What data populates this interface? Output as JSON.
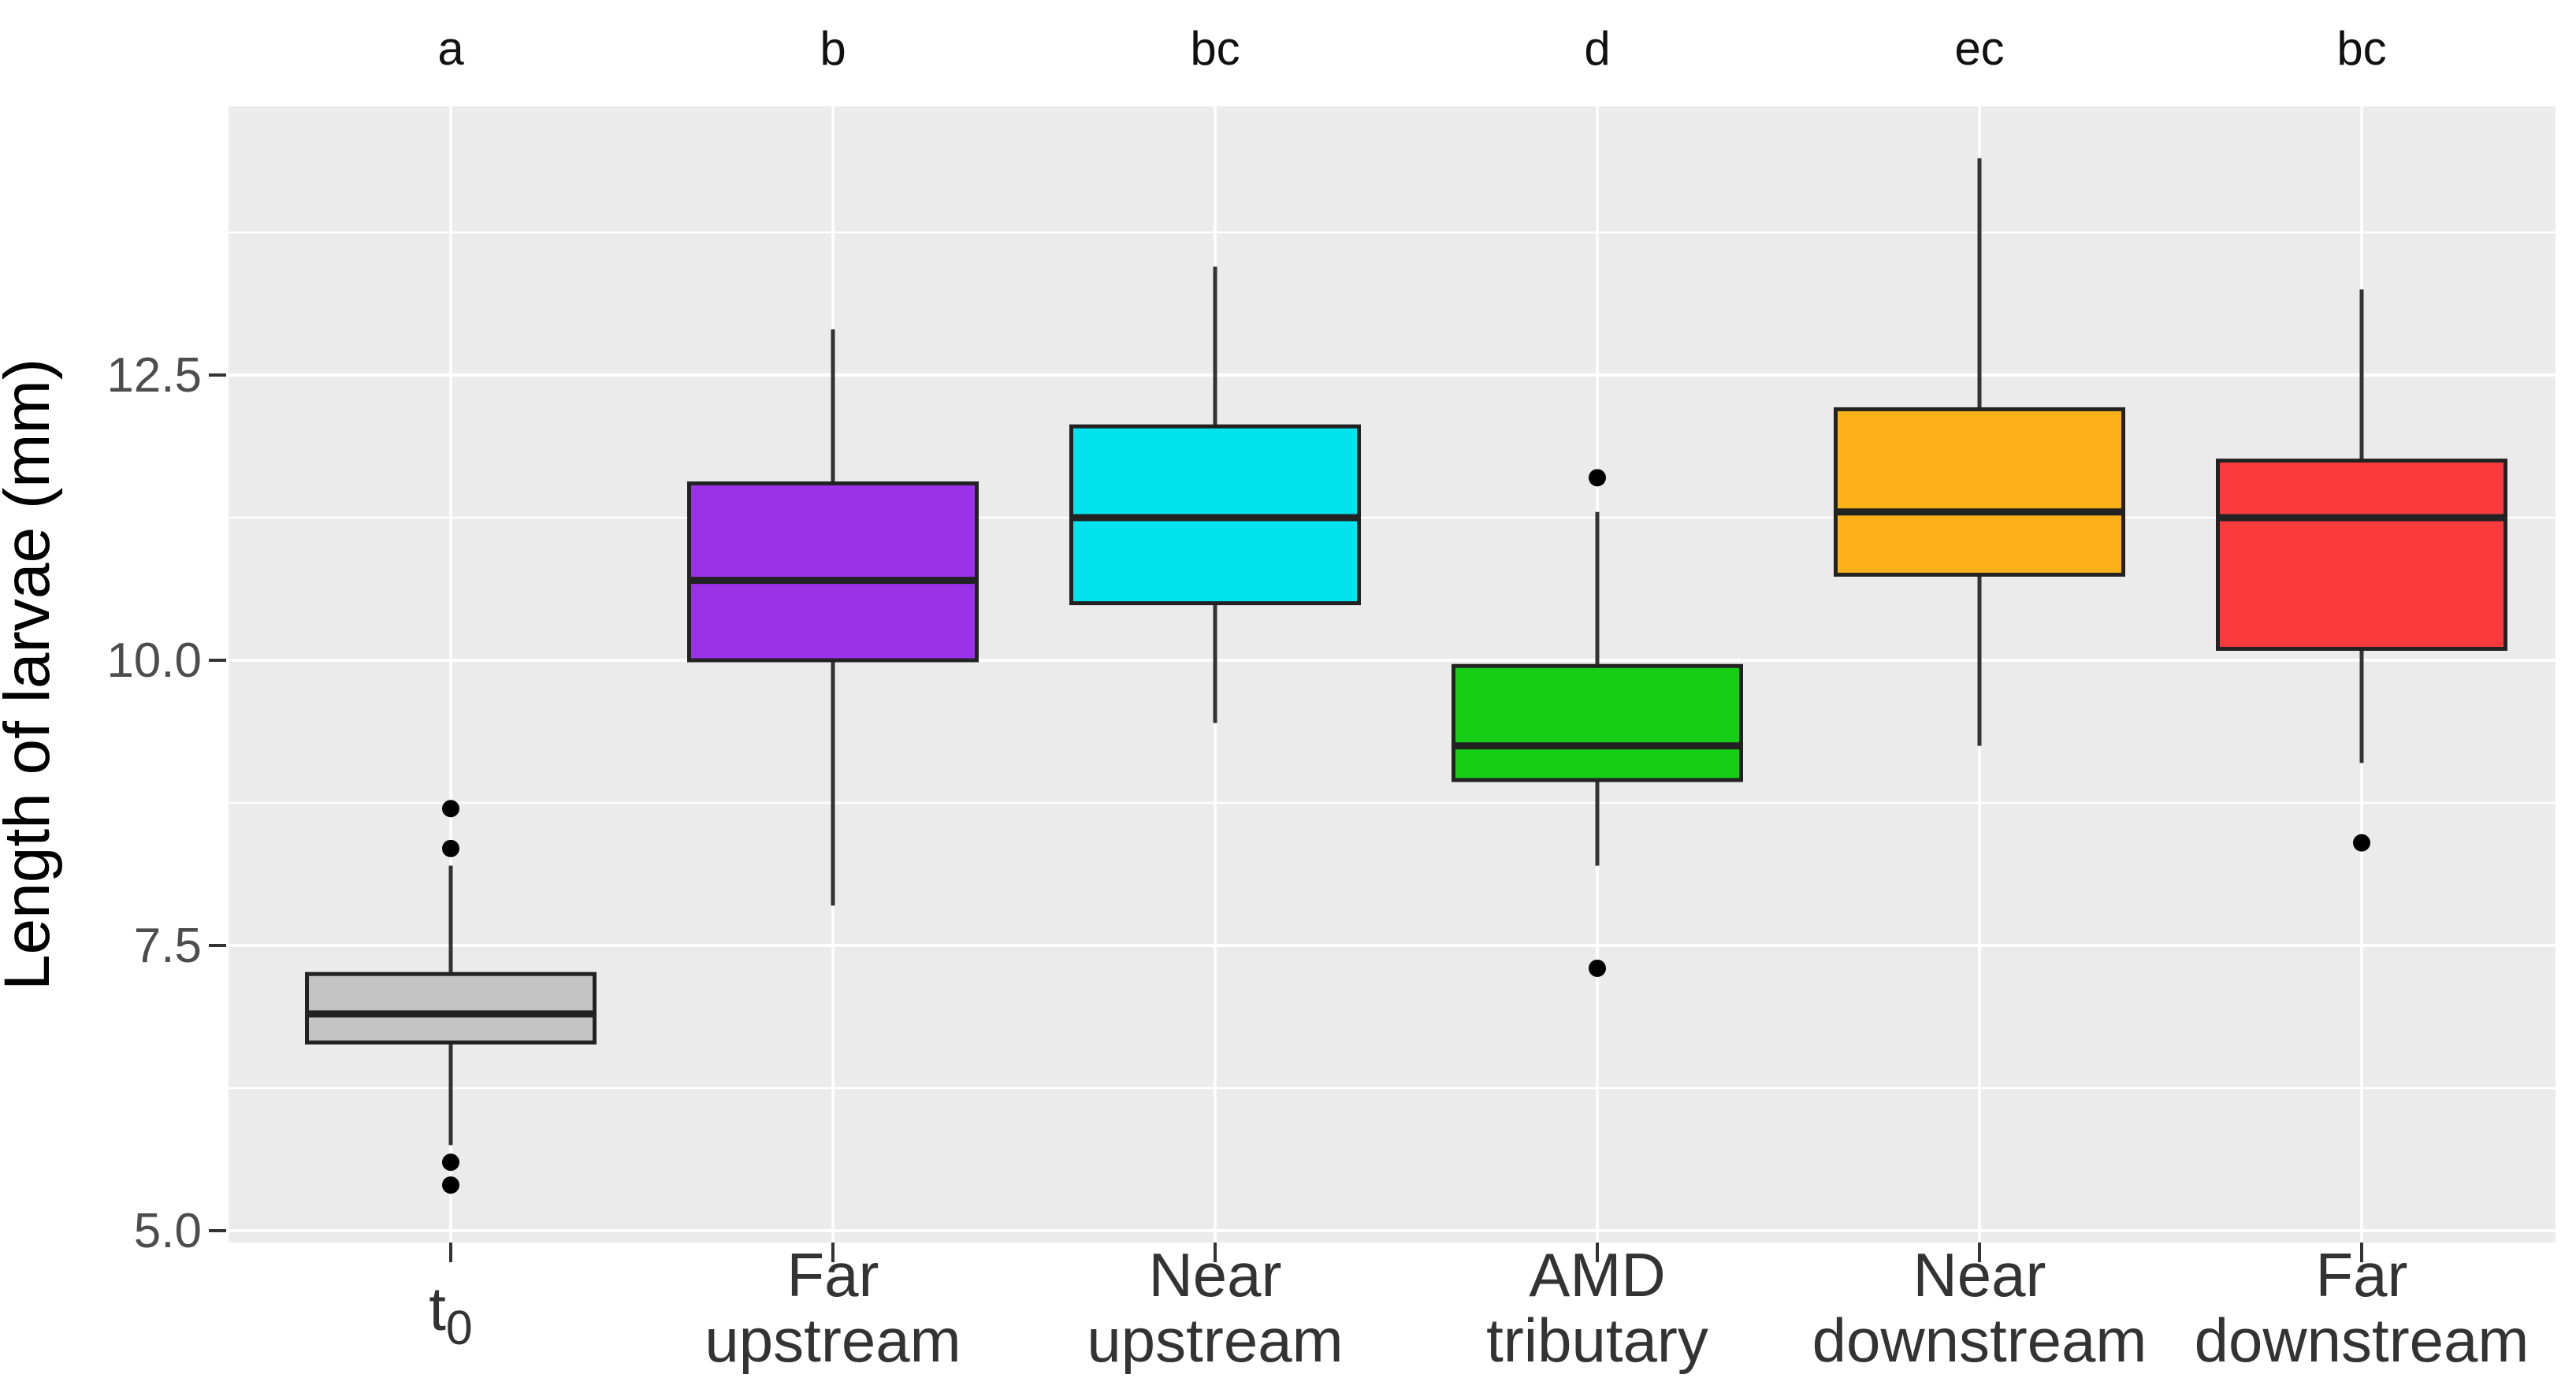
{
  "chart_data": {
    "type": "boxplot",
    "title": "",
    "xlabel": "",
    "ylabel": "Length of larvae (mm)",
    "ylim": [
      4.9,
      14.86
    ],
    "yticks": [
      5.0,
      7.5,
      10.0,
      12.5
    ],
    "ytick_labels": [
      "5.0",
      "7.5",
      "10.0",
      "12.5"
    ],
    "minor_gridlines": [
      6.25,
      8.75,
      11.25,
      13.75
    ],
    "grid": "on",
    "legend": "none",
    "panel_background": "#EBEBEB",
    "groups": [
      {
        "label_lines": [
          "t0"
        ],
        "label_base": "t",
        "label_subscript": "0",
        "significance_letter": "a",
        "fill_color": "#C4C4C4",
        "q1": 6.65,
        "median": 6.9,
        "q3": 7.25,
        "whisker_low": 5.75,
        "whisker_high": 8.2,
        "outliers": [
          8.7,
          8.35,
          5.6,
          5.4
        ]
      },
      {
        "label_lines": [
          "Far",
          "upstream"
        ],
        "significance_letter": "b",
        "fill_color": "#9A32E8",
        "q1": 10.0,
        "median": 10.7,
        "q3": 11.55,
        "whisker_low": 7.85,
        "whisker_high": 12.9,
        "outliers": []
      },
      {
        "label_lines": [
          "Near",
          "upstream"
        ],
        "significance_letter": "bc",
        "fill_color": "#00E3EE",
        "q1": 10.5,
        "median": 11.25,
        "q3": 12.05,
        "whisker_low": 9.45,
        "whisker_high": 13.45,
        "outliers": []
      },
      {
        "label_lines": [
          "AMD",
          "tributary"
        ],
        "significance_letter": "d",
        "fill_color": "#15CE15",
        "q1": 8.95,
        "median": 9.25,
        "q3": 9.95,
        "whisker_low": 8.2,
        "whisker_high": 11.3,
        "outliers": [
          11.6,
          7.3
        ]
      },
      {
        "label_lines": [
          "Near",
          "downstream"
        ],
        "significance_letter": "ec",
        "fill_color": "#FBB117",
        "q1": 10.75,
        "median": 11.3,
        "q3": 12.2,
        "whisker_low": 9.25,
        "whisker_high": 14.4,
        "outliers": []
      },
      {
        "label_lines": [
          "Far",
          "downstream"
        ],
        "significance_letter": "bc",
        "fill_color": "#FA3B3E",
        "q1": 10.1,
        "median": 11.25,
        "q3": 11.75,
        "whisker_low": 9.1,
        "whisker_high": 13.25,
        "outliers": [
          8.4
        ]
      }
    ],
    "colors": {
      "panel_bg": "#EBEBEB",
      "gridline": "#FFFFFF",
      "box_stroke": "#222222",
      "median_stroke": "#222222",
      "whisker_stroke": "#333333",
      "outlier_fill": "#000000",
      "tick_mark": "#333333",
      "tick_text": "#4D4D4D",
      "category_text": "#333333",
      "axis_title_text": "#000000",
      "letter_text": "#111111"
    }
  }
}
